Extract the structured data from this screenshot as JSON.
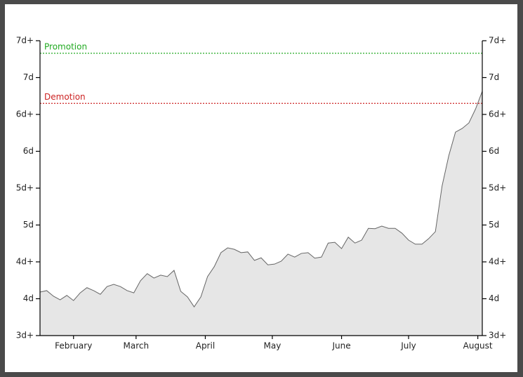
{
  "chart_data": {
    "type": "area",
    "color": "#e6e6e6",
    "line_color": "#666666",
    "x": [
      17,
      20,
      23,
      26,
      29,
      32,
      35,
      38,
      41,
      44,
      47,
      50,
      53,
      56,
      59,
      62,
      65,
      68,
      71,
      74,
      77,
      80,
      83,
      86,
      89,
      92,
      95,
      98,
      101,
      104,
      107,
      110,
      113,
      116,
      119,
      122,
      125,
      128,
      131,
      134,
      137,
      140,
      143,
      146,
      149,
      152,
      155,
      158,
      161,
      164,
      167,
      170,
      173,
      176,
      179,
      182,
      185,
      188,
      191,
      194,
      197,
      200,
      203,
      206,
      209,
      212,
      215
    ],
    "values": [
      1.18,
      1.22,
      1.07,
      0.97,
      1.09,
      0.95,
      1.16,
      1.3,
      1.22,
      1.12,
      1.33,
      1.39,
      1.33,
      1.22,
      1.16,
      1.49,
      1.68,
      1.56,
      1.64,
      1.6,
      1.77,
      1.2,
      1.05,
      0.78,
      1.05,
      1.6,
      1.87,
      2.25,
      2.38,
      2.34,
      2.25,
      2.27,
      2.04,
      2.11,
      1.92,
      1.94,
      2.02,
      2.21,
      2.13,
      2.23,
      2.25,
      2.1,
      2.13,
      2.51,
      2.53,
      2.36,
      2.67,
      2.51,
      2.59,
      2.91,
      2.9,
      2.97,
      2.91,
      2.91,
      2.78,
      2.59,
      2.48,
      2.48,
      2.63,
      2.82,
      4.06,
      4.88,
      5.52,
      5.62,
      5.77,
      6.15,
      6.63
    ],
    "xlim": [
      17,
      215
    ],
    "xticks": [
      {
        "value": 32,
        "label": "February"
      },
      {
        "value": 60,
        "label": "March"
      },
      {
        "value": 91,
        "label": "April"
      },
      {
        "value": 121,
        "label": "May"
      },
      {
        "value": 152,
        "label": "June"
      },
      {
        "value": 182,
        "label": "July"
      },
      {
        "value": 213,
        "label": "August"
      }
    ],
    "ylim": [
      0,
      8
    ],
    "yticks": [
      {
        "value": 0,
        "label": "3d+"
      },
      {
        "value": 1,
        "label": "4d"
      },
      {
        "value": 2,
        "label": "4d+"
      },
      {
        "value": 3,
        "label": "5d"
      },
      {
        "value": 4,
        "label": "5d+"
      },
      {
        "value": 5,
        "label": "6d"
      },
      {
        "value": 6,
        "label": "6d+"
      },
      {
        "value": 7,
        "label": "7d"
      },
      {
        "value": 8,
        "label": "7d+"
      }
    ],
    "right_axis": true,
    "reference_lines": [
      {
        "label": "Promotion",
        "value": 7.66,
        "color": "#22aa22"
      },
      {
        "label": "Demotion",
        "value": 6.3,
        "color": "#cc2222"
      }
    ]
  }
}
